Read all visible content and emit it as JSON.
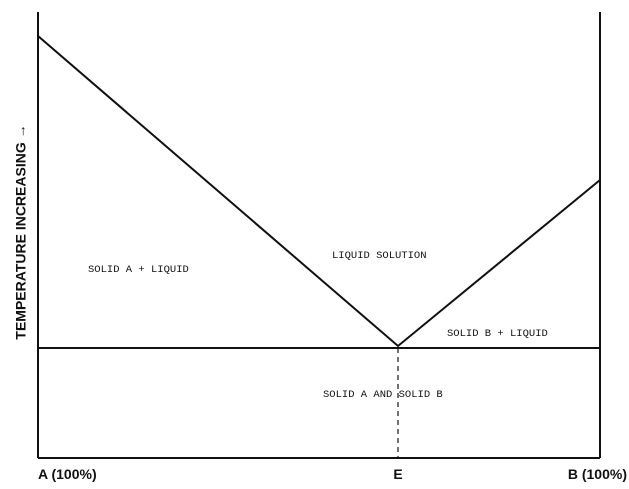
{
  "axis": {
    "y_label": "TEMPERATURE INCREASING →",
    "x_labels": [
      "A (100%)",
      "E",
      "B (100%)"
    ]
  },
  "regions": [
    "SOLID A + LIQUID",
    "LIQUID SOLUTION",
    "SOLID B + LIQUID",
    "SOLID A AND SOLID B"
  ]
}
